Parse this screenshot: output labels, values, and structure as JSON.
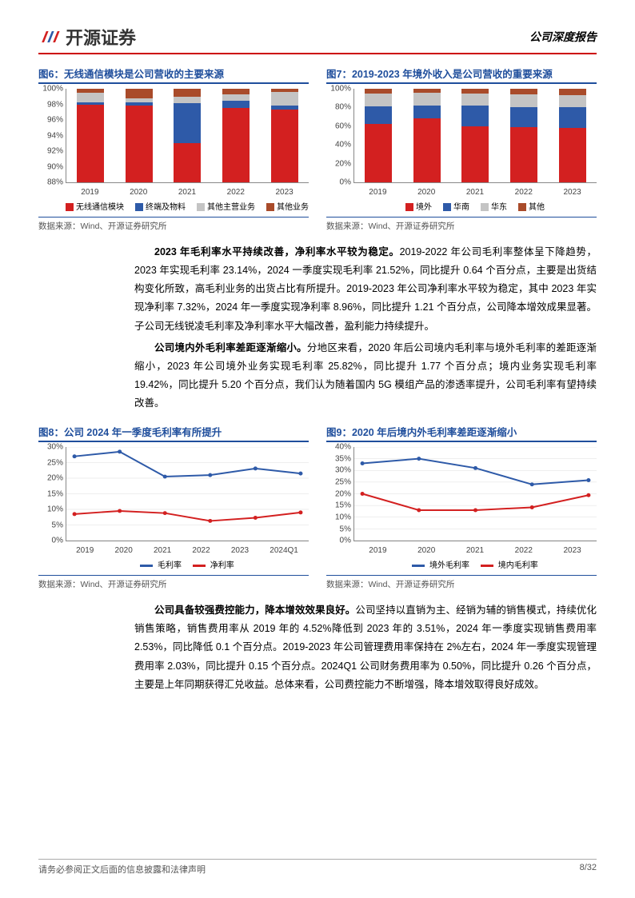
{
  "header": {
    "brand": "开源证券",
    "doc_type": "公司深度报告"
  },
  "colors": {
    "red": "#d32020",
    "blue": "#2e5aa8",
    "gray": "#c4c4c4",
    "brown": "#a94b2a",
    "title_blue": "#1f4e9c",
    "line_blue": "#2e5aa8",
    "line_red": "#d32020"
  },
  "fig6": {
    "title": "图6：无线通信模块是公司营收的主要来源",
    "ylim": [
      88,
      100
    ],
    "yticks": [
      "88%",
      "90%",
      "92%",
      "94%",
      "96%",
      "98%",
      "100%"
    ],
    "categories": [
      "2019",
      "2020",
      "2021",
      "2022",
      "2023"
    ],
    "series": [
      {
        "name": "无线通信模块",
        "values": [
          98.0,
          97.8,
          93.0,
          97.5,
          97.3
        ]
      },
      {
        "name": "终端及物料",
        "values": [
          0.3,
          0.5,
          5.2,
          1.0,
          0.5
        ]
      },
      {
        "name": "其他主营业务",
        "values": [
          1.2,
          0.5,
          0.8,
          0.8,
          1.8
        ]
      },
      {
        "name": "其他业务",
        "values": [
          0.5,
          1.2,
          1.0,
          0.7,
          0.4
        ]
      }
    ],
    "series_colors": [
      "#d32020",
      "#2e5aa8",
      "#c4c4c4",
      "#a94b2a"
    ],
    "source": "数据来源：Wind、开源证券研究所"
  },
  "fig7": {
    "title": "图7：2019-2023 年境外收入是公司营收的重要来源",
    "ylim": [
      0,
      100
    ],
    "yticks": [
      "0%",
      "20%",
      "40%",
      "60%",
      "80%",
      "100%"
    ],
    "categories": [
      "2019",
      "2020",
      "2021",
      "2022",
      "2023"
    ],
    "series": [
      {
        "name": "境外",
        "values": [
          62,
          68,
          60,
          59,
          58
        ]
      },
      {
        "name": "华南",
        "values": [
          19,
          14,
          22,
          21,
          22
        ]
      },
      {
        "name": "华东",
        "values": [
          14,
          14,
          13,
          14,
          13
        ]
      },
      {
        "name": "其他",
        "values": [
          5,
          4,
          5,
          6,
          7
        ]
      }
    ],
    "series_colors": [
      "#d32020",
      "#2e5aa8",
      "#c4c4c4",
      "#a94b2a"
    ],
    "source": "数据来源：Wind、开源证券研究所"
  },
  "para1": {
    "bold": "2023 年毛利率水平持续改善，净利率水平较为稳定。",
    "text": "2019-2022 年公司毛利率整体呈下降趋势，2023 年实现毛利率 23.14%，2024 一季度实现毛利率 21.52%，同比提升 0.64 个百分点，主要是出货结构变化所致，高毛利业务的出货占比有所提升。2019-2023 年公司净利率水平较为稳定，其中 2023 年实现净利率 7.32%，2024 年一季度实现净利率 8.96%，同比提升 1.21 个百分点，公司降本增效成果显著。子公司无线锐凌毛利率及净利率水平大幅改善，盈利能力持续提升。"
  },
  "para2": {
    "bold": "公司境内外毛利率差距逐渐缩小。",
    "text": "分地区来看，2020 年后公司境内毛利率与境外毛利率的差距逐渐缩小，2023 年公司境外业务实现毛利率 25.82%，同比提升 1.77 个百分点；境内业务实现毛利率 19.42%，同比提升 5.20 个百分点，我们认为随着国内 5G 模组产品的渗透率提升，公司毛利率有望持续改善。"
  },
  "fig8": {
    "title": "图8：公司 2024 年一季度毛利率有所提升",
    "ylim": [
      0,
      30
    ],
    "yticks": [
      "0%",
      "5%",
      "10%",
      "15%",
      "20%",
      "25%",
      "30%"
    ],
    "categories": [
      "2019",
      "2020",
      "2021",
      "2022",
      "2023",
      "2024Q1"
    ],
    "series": [
      {
        "name": "毛利率",
        "values": [
          27,
          28.5,
          20.5,
          21,
          23.1,
          21.5
        ],
        "color": "#2e5aa8"
      },
      {
        "name": "净利率",
        "values": [
          8.5,
          9.5,
          8.8,
          6.3,
          7.3,
          9.0
        ],
        "color": "#d32020"
      }
    ],
    "source": "数据来源：Wind、开源证券研究所"
  },
  "fig9": {
    "title": "图9：2020 年后境内外毛利率差距逐渐缩小",
    "ylim": [
      0,
      40
    ],
    "yticks": [
      "0%",
      "5%",
      "10%",
      "15%",
      "20%",
      "25%",
      "30%",
      "35%",
      "40%"
    ],
    "categories": [
      "2019",
      "2020",
      "2021",
      "2022",
      "2023"
    ],
    "series": [
      {
        "name": "境外毛利率",
        "values": [
          33,
          35,
          31,
          24,
          25.8
        ],
        "color": "#2e5aa8"
      },
      {
        "name": "境内毛利率",
        "values": [
          20,
          13,
          13,
          14.2,
          19.4
        ],
        "color": "#d32020"
      }
    ],
    "source": "数据来源：Wind、开源证券研究所"
  },
  "para3": {
    "bold": "公司具备较强费控能力，降本增效效果良好。",
    "text": "公司坚持以直销为主、经销为辅的销售模式，持续优化销售策略，销售费用率从 2019 年的 4.52%降低到 2023 年的 3.51%，2024 年一季度实现销售费用率 2.53%，同比降低 0.1 个百分点。2019-2023 年公司管理费用率保持在 2%左右，2024 年一季度实现管理费用率 2.03%，同比提升 0.15 个百分点。2024Q1 公司财务费用率为 0.50%，同比提升 0.26 个百分点，主要是上年同期获得汇兑收益。总体来看，公司费控能力不断增强，降本增效取得良好成效。"
  },
  "footer": {
    "disclaimer": "请务必参阅正文后面的信息披露和法律声明",
    "page": "8/32"
  }
}
